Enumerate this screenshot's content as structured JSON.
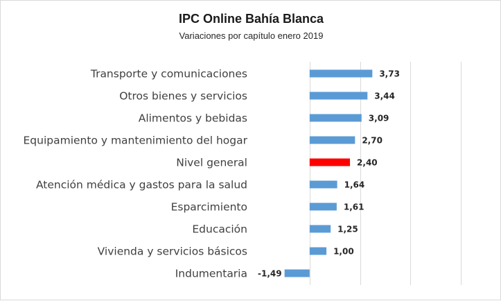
{
  "chart_data": {
    "type": "bar",
    "orientation": "horizontal",
    "title": "IPC Online Bahía Blanca",
    "subtitle": "Variaciones por capítulo enero 2019",
    "categories": [
      "Transporte y comunicaciones",
      "Otros bienes y servicios",
      "Alimentos y bebidas",
      "Equipamiento y mantenimiento del hogar",
      "Nivel general",
      "Atención médica y gastos para la salud",
      "Esparcimiento",
      "Educación",
      "Vivienda y servicios básicos",
      "Indumentaria"
    ],
    "values": [
      3.73,
      3.44,
      3.09,
      2.7,
      2.4,
      1.64,
      1.61,
      1.25,
      1.0,
      -1.49
    ],
    "value_labels": [
      "3,73",
      "3,44",
      "3,09",
      "2,70",
      "2,40",
      "1,64",
      "1,61",
      "1,25",
      "1,00",
      "-1,49"
    ],
    "xlim": [
      -3,
      12
    ],
    "grid": true,
    "colors": {
      "bar": "#5b9bd5",
      "highlight": "#ff0000"
    },
    "highlight_category": "Nivel general"
  }
}
